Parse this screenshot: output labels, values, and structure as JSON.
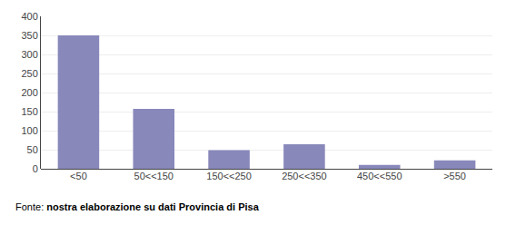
{
  "chart_data": {
    "type": "bar",
    "categories": [
      "<50",
      "50<<150",
      "150<<250",
      "250<<350",
      "450<<550",
      ">550"
    ],
    "values": [
      350,
      157,
      49,
      64,
      10,
      22
    ],
    "color": "#8888BB",
    "ylim": [
      0,
      400
    ],
    "yticks": [
      0,
      50,
      100,
      150,
      200,
      250,
      300,
      350,
      400
    ],
    "grid": true,
    "annotations": [
      "Fonte:",
      "nostra elaborazione su dati Provincia di Pisa"
    ]
  }
}
